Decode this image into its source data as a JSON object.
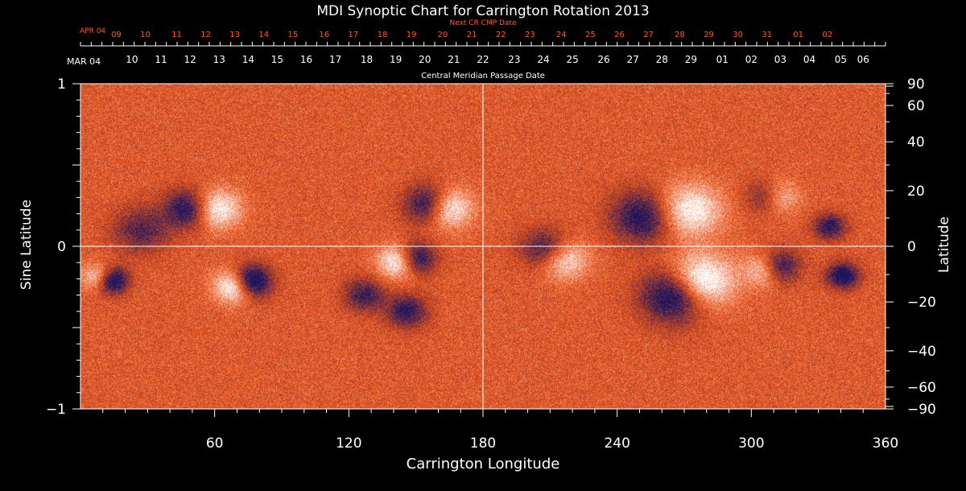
{
  "chart_data": {
    "type": "heatmap",
    "title": "MDI Synoptic Chart for Carrington Rotation 2013",
    "xlabel": "Carrington Longitude",
    "ylabel_left": "Sine Latitude",
    "ylabel_right": "Latitude",
    "xlim": [
      0,
      360
    ],
    "ylim": [
      -1,
      1
    ],
    "x_ticks": [
      60,
      120,
      180,
      240,
      300,
      360
    ],
    "y_left_ticks": [
      {
        "value": 1,
        "label": "1"
      },
      {
        "value": 0,
        "label": "0"
      },
      {
        "value": -1,
        "label": "−1"
      }
    ],
    "y_right_ticks": [
      {
        "lat": 90,
        "label": "90"
      },
      {
        "lat": 60,
        "label": "60"
      },
      {
        "lat": 40,
        "label": "40"
      },
      {
        "lat": 20,
        "label": "20"
      },
      {
        "lat": 0,
        "label": "0"
      },
      {
        "lat": -20,
        "label": "−20"
      },
      {
        "lat": -40,
        "label": "−40"
      },
      {
        "lat": -60,
        "label": "−60"
      },
      {
        "lat": -90,
        "label": "−90"
      }
    ],
    "top_axis": {
      "title": "Central Meridian Passage Date",
      "start_label": "MAR 04",
      "labels": [
        "06",
        "05",
        "04",
        "03",
        "02",
        "01",
        "29",
        "28",
        "27",
        "26",
        "25",
        "24",
        "23",
        "22",
        "21",
        "20",
        "19",
        "18",
        "17",
        "16",
        "15",
        "14",
        "13",
        "12",
        "11",
        "10"
      ],
      "label_longitudes": [
        350,
        340,
        326,
        313,
        300,
        287,
        273,
        260,
        247,
        234,
        220,
        207,
        194,
        180,
        167,
        154,
        141,
        128,
        114,
        101,
        88,
        75,
        62,
        49,
        36,
        23
      ]
    },
    "next_cr_axis": {
      "title": "Next CR CMP Date",
      "start_label": "APR 04",
      "labels": [
        "02",
        "01",
        "31",
        "30",
        "29",
        "28",
        "27",
        "26",
        "25",
        "24",
        "23",
        "22",
        "21",
        "20",
        "19",
        "18",
        "17",
        "16",
        "15",
        "14",
        "13",
        "12",
        "11",
        "10",
        "09"
      ],
      "label_longitudes": [
        334,
        321,
        307,
        294,
        281,
        268,
        254,
        241,
        228,
        215,
        201,
        188,
        175,
        162,
        148,
        135,
        122,
        109,
        95,
        82,
        69,
        56,
        43,
        29,
        16
      ]
    },
    "active_regions": [
      {
        "lon": 162,
        "sinlat": 0.24,
        "polarity": "positive",
        "strength": 1.0,
        "spread": 0.06
      },
      {
        "lon": 158,
        "sinlat": 0.25,
        "polarity": "negative",
        "strength": 1.0,
        "spread": 0.06
      },
      {
        "lon": 144,
        "sinlat": -0.09,
        "polarity": "positive",
        "strength": 0.9,
        "spread": 0.05
      },
      {
        "lon": 148,
        "sinlat": -0.08,
        "polarity": "negative",
        "strength": 0.9,
        "spread": 0.05
      },
      {
        "lon": 70,
        "sinlat": -0.24,
        "polarity": "positive",
        "strength": 0.8,
        "spread": 0.05
      },
      {
        "lon": 75,
        "sinlat": -0.22,
        "polarity": "negative",
        "strength": 0.9,
        "spread": 0.05
      },
      {
        "lon": 308,
        "sinlat": -0.14,
        "polarity": "positive",
        "strength": 0.8,
        "spread": 0.05
      },
      {
        "lon": 311,
        "sinlat": -0.13,
        "polarity": "negative",
        "strength": 0.9,
        "spread": 0.05
      },
      {
        "lon": 311,
        "sinlat": 0.3,
        "polarity": "positive",
        "strength": 0.6,
        "spread": 0.05
      },
      {
        "lon": 308,
        "sinlat": 0.3,
        "polarity": "negative",
        "strength": 0.6,
        "spread": 0.05
      },
      {
        "lon": 60,
        "sinlat": 0.23,
        "polarity": "positive",
        "strength": 0.5,
        "spread": 0.06
      },
      {
        "lon": 49,
        "sinlat": 0.23,
        "polarity": "negative",
        "strength": 0.5,
        "spread": 0.06
      },
      {
        "lon": 277,
        "sinlat": -0.22,
        "polarity": "positive",
        "strength": 0.6,
        "spread": 0.08
      },
      {
        "lon": 266,
        "sinlat": -0.3,
        "polarity": "negative",
        "strength": 0.6,
        "spread": 0.08
      },
      {
        "lon": 252,
        "sinlat": 0.18,
        "polarity": "negative",
        "strength": 0.45,
        "spread": 0.08
      },
      {
        "lon": 272,
        "sinlat": 0.22,
        "polarity": "positive",
        "strength": 0.45,
        "spread": 0.08
      },
      {
        "lon": 14,
        "sinlat": -0.21,
        "polarity": "negative",
        "strength": 0.6,
        "spread": 0.04
      },
      {
        "lon": 8,
        "sinlat": -0.19,
        "polarity": "positive",
        "strength": 0.4,
        "spread": 0.04
      },
      {
        "lon": 341,
        "sinlat": -0.18,
        "polarity": "negative",
        "strength": 0.5,
        "spread": 0.04
      },
      {
        "lon": 335,
        "sinlat": 0.12,
        "polarity": "negative",
        "strength": 0.4,
        "spread": 0.04
      },
      {
        "lon": 208,
        "sinlat": -0.02,
        "polarity": "negative",
        "strength": 0.4,
        "spread": 0.06
      },
      {
        "lon": 216,
        "sinlat": -0.08,
        "polarity": "positive",
        "strength": 0.4,
        "spread": 0.06
      },
      {
        "lon": 146,
        "sinlat": -0.4,
        "polarity": "negative",
        "strength": 0.4,
        "spread": 0.05
      },
      {
        "lon": 127,
        "sinlat": -0.3,
        "polarity": "negative",
        "strength": 0.35,
        "spread": 0.05
      },
      {
        "lon": 27,
        "sinlat": 0.1,
        "polarity": "negative",
        "strength": 0.3,
        "spread": 0.07
      }
    ],
    "colors": {
      "background": "#000000",
      "axis": "#ffffff",
      "next_cr_text": "#ff5a1f",
      "field_zero": "#e8531a",
      "positive": "#ffffff",
      "negative": "#1a1460"
    }
  }
}
